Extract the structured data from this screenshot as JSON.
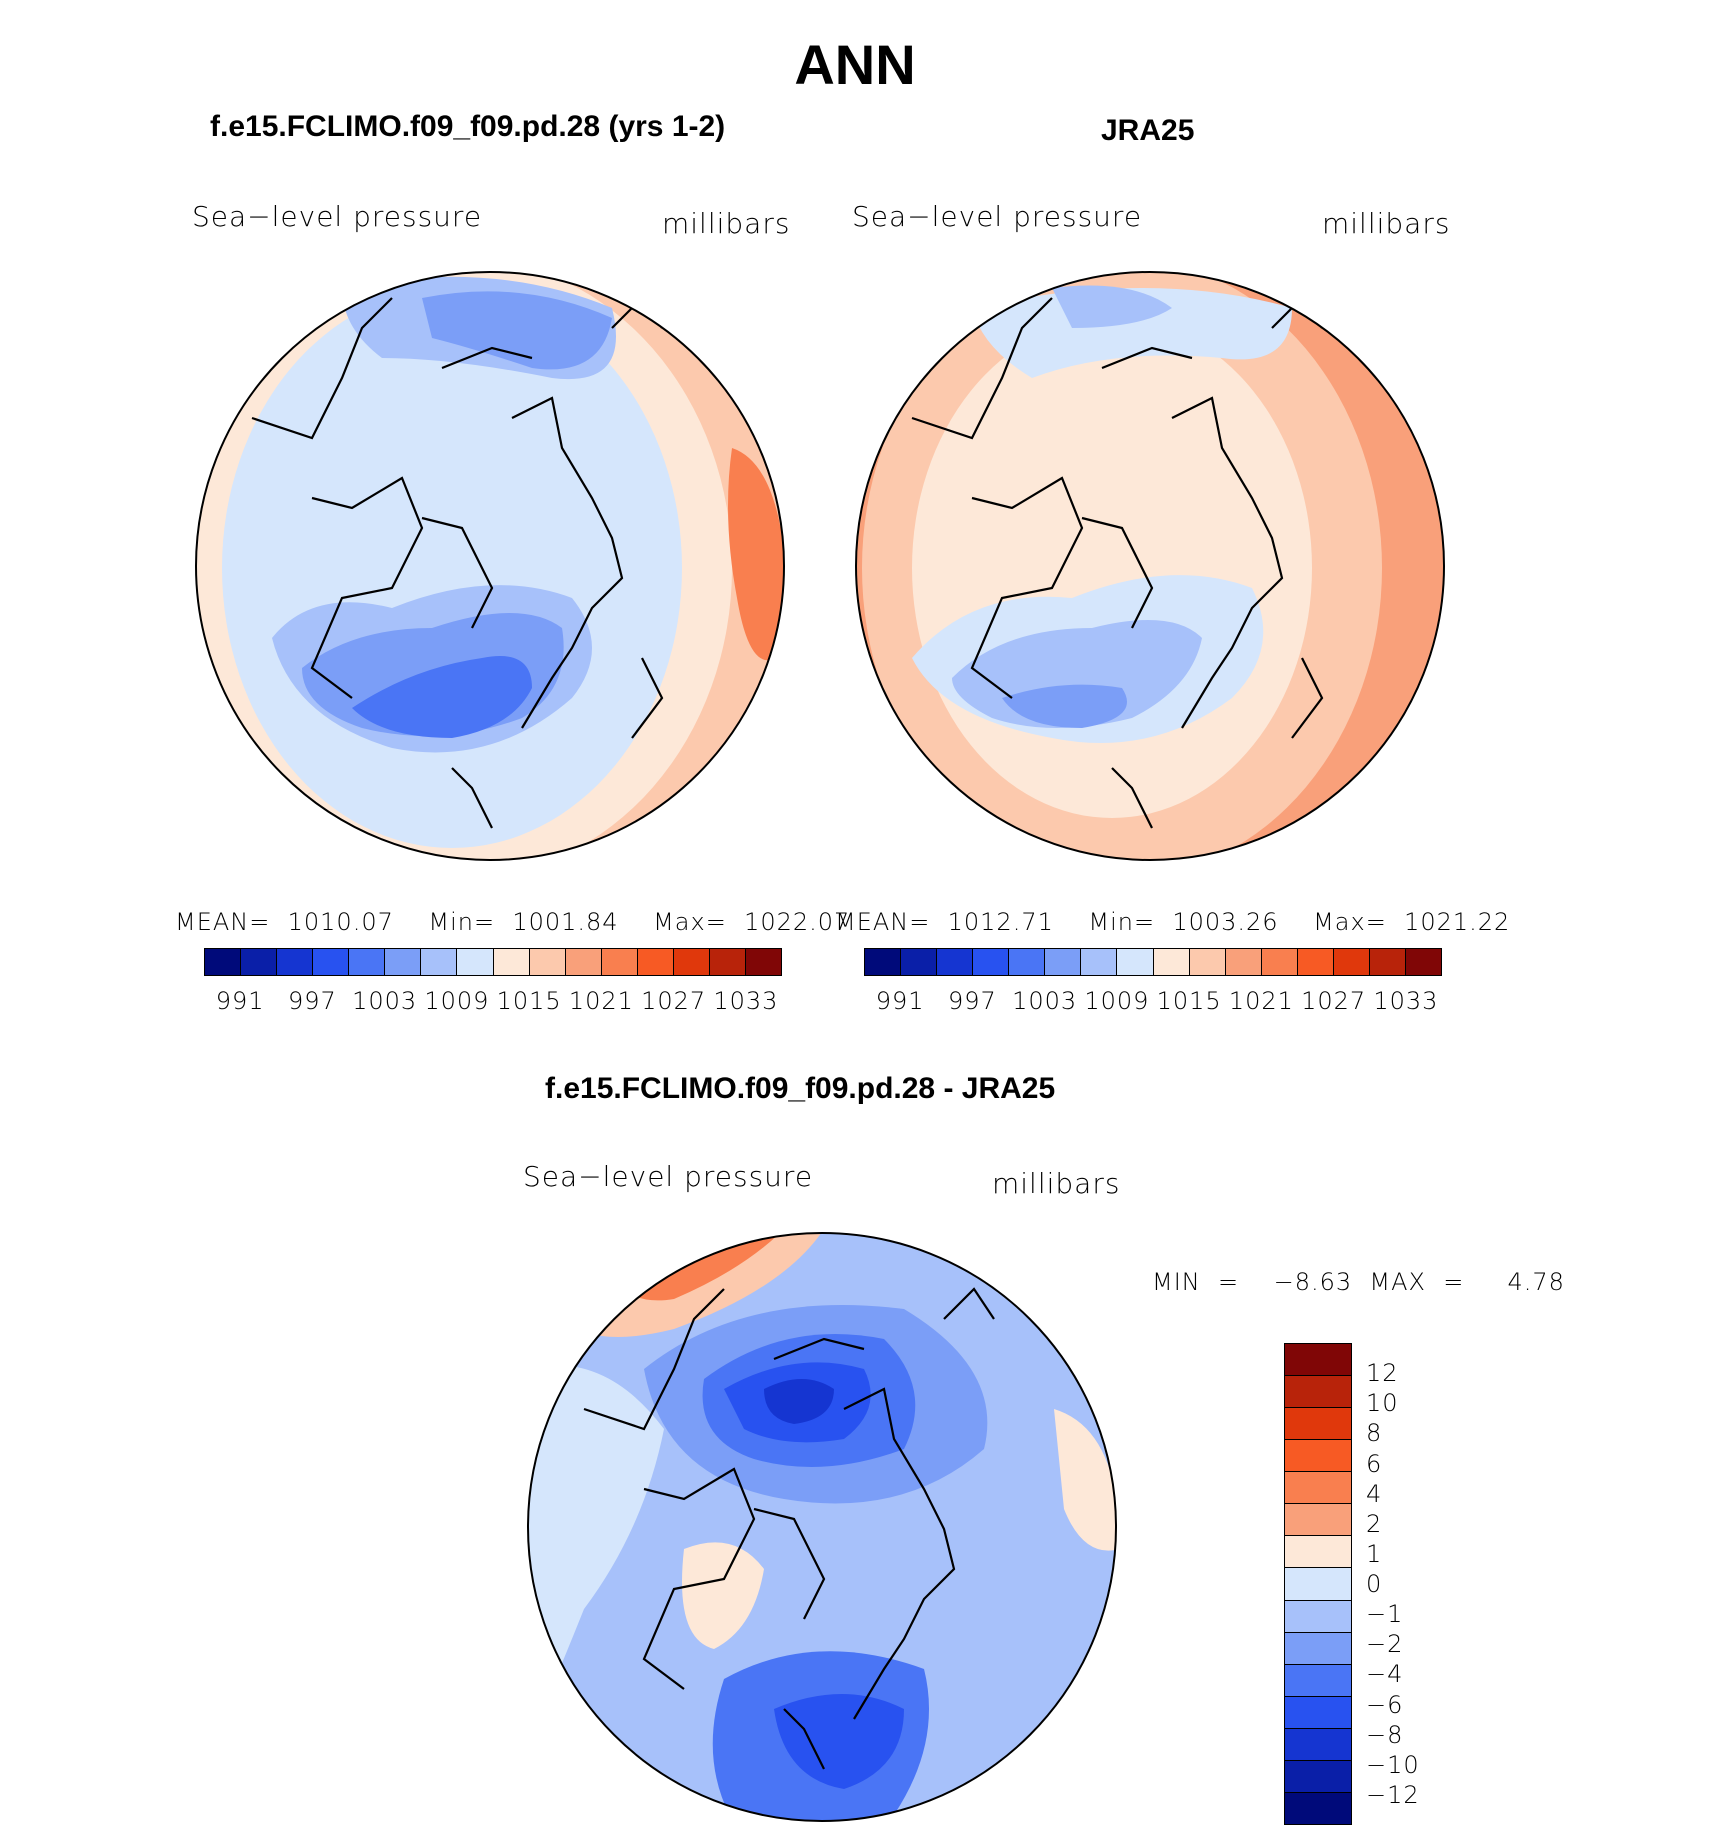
{
  "title": "ANN",
  "panels": [
    {
      "title": "f.e15.FCLIMO.f09_f09.pd.28 (yrs 1-2)",
      "variable": "Sea−level pressure",
      "units": "millibars",
      "stats": "MEAN=  1010.07    Min=  1001.84    Max=  1022.07"
    },
    {
      "title": "JRA25",
      "variable": "Sea−level pressure",
      "units": "millibars",
      "stats": "MEAN=  1012.71    Min=  1003.26    Max=  1021.22"
    },
    {
      "title": "f.e15.FCLIMO.f09_f09.pd.28 - JRA25",
      "variable": "Sea−level pressure",
      "units": "millibars",
      "stats": "MIN  =    −8.63  MAX  =     4.78"
    }
  ],
  "colorbar_abs": {
    "colors": [
      "#000a7a",
      "#0a1fa8",
      "#1535d1",
      "#2852f0",
      "#4a75f5",
      "#7b9ef7",
      "#a7c1fa",
      "#d5e6fc",
      "#fde8d8",
      "#fcc9ad",
      "#f9a07a",
      "#f97f4f",
      "#f75a24",
      "#e0380c",
      "#b8230a",
      "#800606"
    ],
    "ticks": [
      "991",
      "997",
      "1003",
      "1009",
      "1015",
      "1021",
      "1027",
      "1033"
    ]
  },
  "colorbar_diff": {
    "colors": [
      "#800606",
      "#b8230a",
      "#e0380c",
      "#f75a24",
      "#f97f4f",
      "#f9a07a",
      "#fde8d8",
      "#d5e6fc",
      "#a7c1fa",
      "#7b9ef7",
      "#4a75f5",
      "#2852f0",
      "#1535d1",
      "#0a1fa8",
      "#000a7a"
    ],
    "ticks": [
      "12",
      "10",
      "8",
      "6",
      "4",
      "2",
      "1",
      "0",
      "−1",
      "−2",
      "−4",
      "−6",
      "−8",
      "−10",
      "−12"
    ]
  },
  "map_fill": {
    "panel1": {
      "outer_pos": "#fcc9ad",
      "mid_pos": "#fde8d8",
      "core": "#d5e6fc",
      "low1": "#a7c1fa",
      "low2": "#7b9ef7",
      "low3": "#4a75f5",
      "high": "#f97f4f"
    },
    "panel2": {
      "outer_pos": "#f9a07a",
      "mid_pos": "#fcc9ad",
      "core": "#fde8d8",
      "low1": "#d5e6fc",
      "low2": "#a7c1fa",
      "low3": "#7b9ef7"
    },
    "panel3": {
      "base": "#a7c1fa",
      "light": "#d5e6fc",
      "low2": "#7b9ef7",
      "low3": "#4a75f5",
      "low4": "#2852f0",
      "low5": "#1535d1",
      "pos": "#fde8d8",
      "pos2": "#fcc9ad",
      "pos3": "#f9a07a",
      "pos4": "#f97f4f"
    }
  }
}
